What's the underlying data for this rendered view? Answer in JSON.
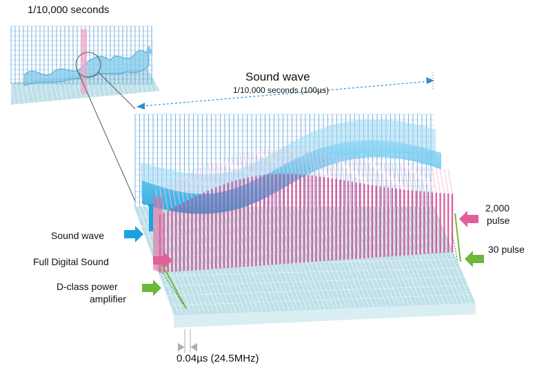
{
  "inset": {
    "title": "1/10,000 seconds"
  },
  "main": {
    "title": "Sound wave",
    "span_label": "1/10,000 seconds (100µs)"
  },
  "legend": {
    "sound_wave": "Sound wave",
    "full_digital": "Full Digital Sound",
    "dclass_line1": "D-class power",
    "dclass_line2": "amplifier"
  },
  "right_labels": {
    "pulse_2000_line1": "2,000",
    "pulse_2000_line2": "pulse",
    "pulse_30": "30 pulse"
  },
  "bottom": {
    "resolution": "0.04µs (24.5MHz)"
  },
  "colors": {
    "sound_wave": "#1aa3e0",
    "full_digital": "#e0609a",
    "dclass": "#6cb83a",
    "grid": "#3f8fd0",
    "floor": "#b9dde6",
    "gray_arrow": "#b0b0b0"
  }
}
